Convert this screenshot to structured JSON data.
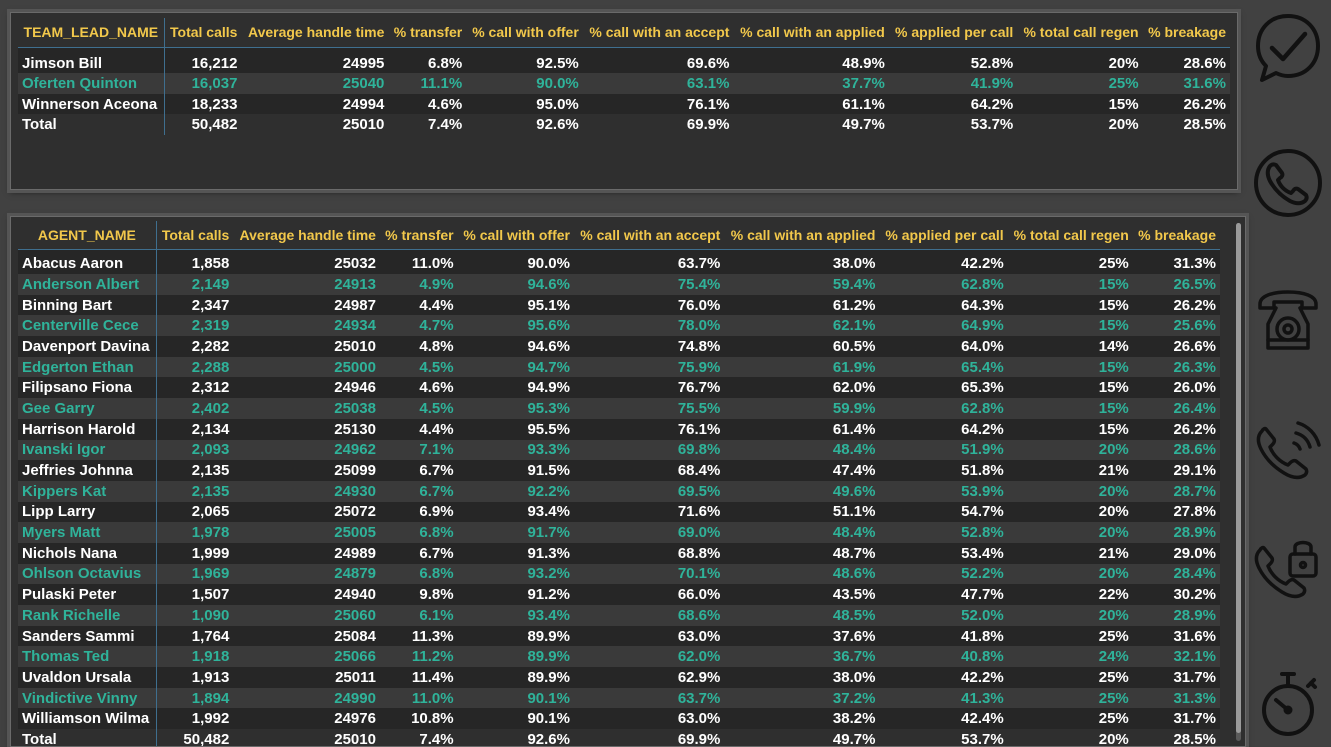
{
  "team_table": {
    "headers": [
      "TEAM_LEAD_NAME",
      "Total calls",
      "Average handle time",
      "% transfer",
      "% call with offer",
      "% call with an accept",
      "% call with an applied",
      "% applied per call",
      "% total call regen",
      "% breakage"
    ],
    "rows": [
      [
        "Jimson Bill",
        "16,212",
        "24995",
        "6.8%",
        "92.5%",
        "69.6%",
        "48.9%",
        "52.8%",
        "20%",
        "28.6%"
      ],
      [
        "Oferten Quinton",
        "16,037",
        "25040",
        "11.1%",
        "90.0%",
        "63.1%",
        "37.7%",
        "41.9%",
        "25%",
        "31.6%"
      ],
      [
        "Winnerson Aceona",
        "18,233",
        "24994",
        "4.6%",
        "95.0%",
        "76.1%",
        "61.1%",
        "64.2%",
        "15%",
        "26.2%"
      ]
    ],
    "total": [
      "Total",
      "50,482",
      "25010",
      "7.4%",
      "92.6%",
      "69.9%",
      "49.7%",
      "53.7%",
      "20%",
      "28.5%"
    ]
  },
  "agent_table": {
    "headers": [
      "AGENT_NAME",
      "Total calls",
      "Average handle time",
      "% transfer",
      "% call with offer",
      "% call with an accept",
      "% call with an applied",
      "% applied per call",
      "% total call regen",
      "% breakage"
    ],
    "rows": [
      [
        "Abacus Aaron",
        "1,858",
        "25032",
        "11.0%",
        "90.0%",
        "63.7%",
        "38.0%",
        "42.2%",
        "25%",
        "31.3%"
      ],
      [
        "Anderson Albert",
        "2,149",
        "24913",
        "4.9%",
        "94.6%",
        "75.4%",
        "59.4%",
        "62.8%",
        "15%",
        "26.5%"
      ],
      [
        "Binning Bart",
        "2,347",
        "24987",
        "4.4%",
        "95.1%",
        "76.0%",
        "61.2%",
        "64.3%",
        "15%",
        "26.2%"
      ],
      [
        "Centerville Cece",
        "2,319",
        "24934",
        "4.7%",
        "95.6%",
        "78.0%",
        "62.1%",
        "64.9%",
        "15%",
        "25.6%"
      ],
      [
        "Davenport Davina",
        "2,282",
        "25010",
        "4.8%",
        "94.6%",
        "74.8%",
        "60.5%",
        "64.0%",
        "14%",
        "26.6%"
      ],
      [
        "Edgerton Ethan",
        "2,288",
        "25000",
        "4.5%",
        "94.7%",
        "75.9%",
        "61.9%",
        "65.4%",
        "15%",
        "26.3%"
      ],
      [
        "Filipsano Fiona",
        "2,312",
        "24946",
        "4.6%",
        "94.9%",
        "76.7%",
        "62.0%",
        "65.3%",
        "15%",
        "26.0%"
      ],
      [
        "Gee Garry",
        "2,402",
        "25038",
        "4.5%",
        "95.3%",
        "75.5%",
        "59.9%",
        "62.8%",
        "15%",
        "26.4%"
      ],
      [
        "Harrison Harold",
        "2,134",
        "25130",
        "4.4%",
        "95.5%",
        "76.1%",
        "61.4%",
        "64.2%",
        "15%",
        "26.2%"
      ],
      [
        "Ivanski Igor",
        "2,093",
        "24962",
        "7.1%",
        "93.3%",
        "69.8%",
        "48.4%",
        "51.9%",
        "20%",
        "28.6%"
      ],
      [
        "Jeffries Johnna",
        "2,135",
        "25099",
        "6.7%",
        "91.5%",
        "68.4%",
        "47.4%",
        "51.8%",
        "21%",
        "29.1%"
      ],
      [
        "Kippers Kat",
        "2,135",
        "24930",
        "6.7%",
        "92.2%",
        "69.5%",
        "49.6%",
        "53.9%",
        "20%",
        "28.7%"
      ],
      [
        "Lipp Larry",
        "2,065",
        "25072",
        "6.9%",
        "93.4%",
        "71.6%",
        "51.1%",
        "54.7%",
        "20%",
        "27.8%"
      ],
      [
        "Myers Matt",
        "1,978",
        "25005",
        "6.8%",
        "91.7%",
        "69.0%",
        "48.4%",
        "52.8%",
        "20%",
        "28.9%"
      ],
      [
        "Nichols Nana",
        "1,999",
        "24989",
        "6.7%",
        "91.3%",
        "68.8%",
        "48.7%",
        "53.4%",
        "21%",
        "29.0%"
      ],
      [
        "Ohlson Octavius",
        "1,969",
        "24879",
        "6.8%",
        "93.2%",
        "70.1%",
        "48.6%",
        "52.2%",
        "20%",
        "28.4%"
      ],
      [
        "Pulaski Peter",
        "1,507",
        "24940",
        "9.8%",
        "91.2%",
        "66.0%",
        "43.5%",
        "47.7%",
        "22%",
        "30.2%"
      ],
      [
        "Rank Richelle",
        "1,090",
        "25060",
        "6.1%",
        "93.4%",
        "68.6%",
        "48.5%",
        "52.0%",
        "20%",
        "28.9%"
      ],
      [
        "Sanders Sammi",
        "1,764",
        "25084",
        "11.3%",
        "89.9%",
        "63.0%",
        "37.6%",
        "41.8%",
        "25%",
        "31.6%"
      ],
      [
        "Thomas Ted",
        "1,918",
        "25066",
        "11.2%",
        "89.9%",
        "62.0%",
        "36.7%",
        "40.8%",
        "24%",
        "32.1%"
      ],
      [
        "Uvaldon Ursala",
        "1,913",
        "25011",
        "11.4%",
        "89.9%",
        "62.9%",
        "38.0%",
        "42.2%",
        "25%",
        "31.7%"
      ],
      [
        "Vindictive Vinny",
        "1,894",
        "24990",
        "11.0%",
        "90.1%",
        "63.7%",
        "37.2%",
        "41.3%",
        "25%",
        "31.3%"
      ],
      [
        "Williamson Wilma",
        "1,992",
        "24976",
        "10.8%",
        "90.1%",
        "63.0%",
        "38.2%",
        "42.4%",
        "25%",
        "31.7%"
      ]
    ],
    "total": [
      "Total",
      "50,482",
      "25010",
      "7.4%",
      "92.6%",
      "69.9%",
      "49.7%",
      "53.7%",
      "20%",
      "28.5%"
    ]
  },
  "sidebar": {
    "icons": [
      "chat-check-icon",
      "phone-icon",
      "rotary-phone-icon",
      "phone-ringing-icon",
      "phone-lock-icon",
      "stopwatch-icon"
    ]
  },
  "colors": {
    "header_text": "#f2c84b",
    "odd_row_text": "#ffffff",
    "even_row_text": "#2fb39a",
    "background": "#414141",
    "panel": "#2f2f2f"
  }
}
